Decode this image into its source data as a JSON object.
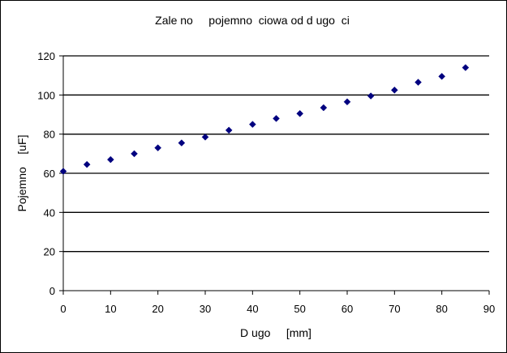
{
  "chart_data": {
    "type": "scatter",
    "title": "Zale no     pojemno  ciowa od d ugo  ci",
    "xlabel": "D ugo     [mm]",
    "ylabel": "Pojemno    [uF]",
    "xlim": [
      0,
      90
    ],
    "ylim": [
      0,
      120
    ],
    "xticks": [
      "0",
      "10",
      "20",
      "30",
      "40",
      "50",
      "60",
      "70",
      "80",
      "90"
    ],
    "yticks": [
      "0",
      "20",
      "40",
      "60",
      "80",
      "100",
      "120"
    ],
    "grid": "horizontal",
    "marker_color": "#00007f",
    "series": [
      {
        "x": [
          0,
          5,
          10,
          15,
          20,
          25,
          30,
          35,
          40,
          45,
          50,
          55,
          60,
          65,
          70,
          75,
          80,
          85
        ],
        "y": [
          61,
          64.5,
          67,
          70,
          73,
          75.5,
          78.5,
          82,
          85,
          88,
          90.5,
          93.5,
          96.5,
          99.5,
          102.5,
          106.5,
          109.5,
          114
        ]
      }
    ]
  }
}
